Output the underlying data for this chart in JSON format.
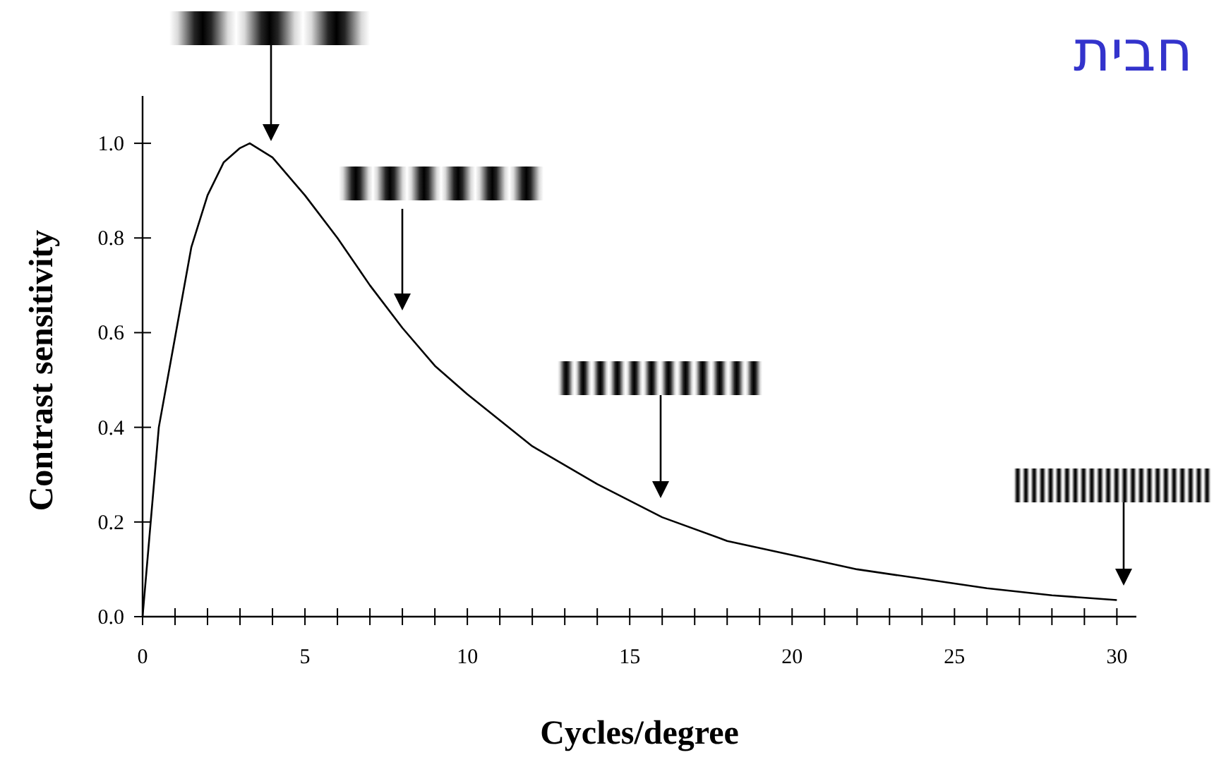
{
  "chart_data": {
    "type": "line",
    "title": "חבית",
    "xlabel": "Cycles/degree",
    "ylabel": "Contrast sensitivity",
    "x": [
      0,
      0.5,
      1,
      1.5,
      2,
      2.5,
      3,
      3.3,
      4,
      5,
      6,
      7,
      8,
      9,
      10,
      12,
      14,
      16,
      18,
      20,
      22,
      24,
      26,
      28,
      30
    ],
    "series": [
      {
        "color": "#000000",
        "values": [
          0,
          0.4,
          0.59,
          0.78,
          0.89,
          0.96,
          0.99,
          1.0,
          0.97,
          0.89,
          0.8,
          0.7,
          0.61,
          0.53,
          0.47,
          0.36,
          0.28,
          0.21,
          0.16,
          0.13,
          0.1,
          0.08,
          0.06,
          0.045,
          0.035
        ]
      }
    ],
    "xlim": [
      0,
      30.6
    ],
    "ylim": [
      0,
      1.1
    ],
    "xticks": [
      0,
      {
        "value": 1,
        "label": null
      },
      {
        "value": 2,
        "label": null
      },
      {
        "value": 3,
        "label": null
      },
      {
        "value": 4,
        "label": null
      },
      5,
      {
        "value": 6,
        "label": null
      },
      {
        "value": 7,
        "label": null
      },
      {
        "value": 8,
        "label": null
      },
      {
        "value": 9,
        "label": null
      },
      10,
      {
        "value": 11,
        "label": null
      },
      {
        "value": 12,
        "label": null
      },
      {
        "value": 13,
        "label": null
      },
      {
        "value": 14,
        "label": null
      },
      15,
      {
        "value": 16,
        "label": null
      },
      {
        "value": 17,
        "label": null
      },
      {
        "value": 18,
        "label": null
      },
      {
        "value": 19,
        "label": null
      },
      20,
      {
        "value": 21,
        "label": null
      },
      {
        "value": 22,
        "label": null
      },
      {
        "value": 23,
        "label": null
      },
      {
        "value": 24,
        "label": null
      },
      25,
      {
        "value": 26,
        "label": null
      },
      {
        "value": 27,
        "label": null
      },
      {
        "value": 28,
        "label": null
      },
      {
        "value": 29,
        "label": null
      },
      30
    ],
    "yticks": [
      {
        "value": 0,
        "label": "0.0"
      },
      {
        "value": 0.2,
        "label": "0.2"
      },
      {
        "value": 0.4,
        "label": "0.4"
      },
      {
        "value": 0.6,
        "label": "0.6"
      },
      {
        "value": 0.8,
        "label": "0.8"
      },
      {
        "value": 1,
        "label": "1.0"
      }
    ]
  }
}
